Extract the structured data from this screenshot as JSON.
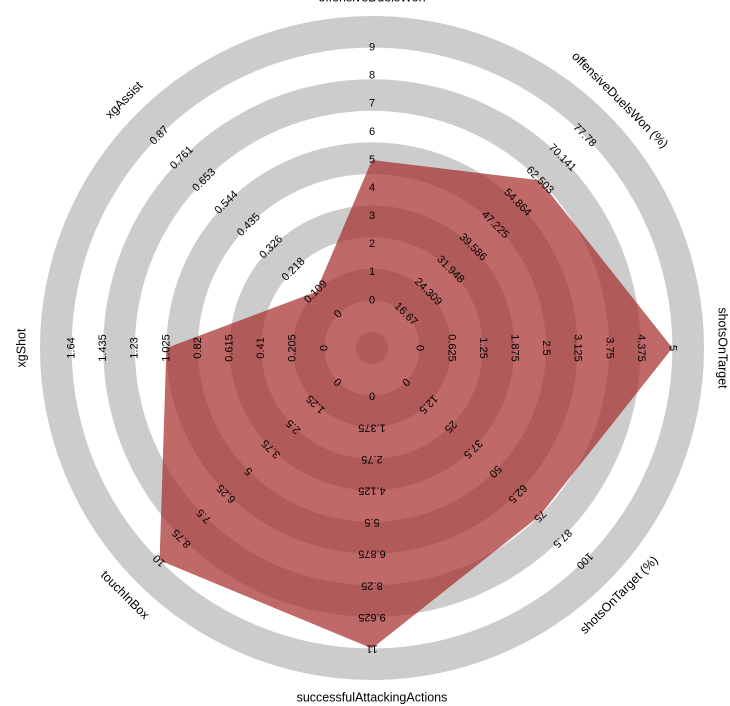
{
  "chart_data": {
    "type": "radar",
    "title": "",
    "colors": {
      "band": "#cccccc",
      "background": "#ffffff",
      "fill": "#a52a2a",
      "fill_opacity": 0.7
    },
    "grid": true,
    "axes": [
      {
        "name": "offensiveDuelsWon",
        "ticks": [
          "0",
          "1",
          "2",
          "3",
          "4",
          "5",
          "6",
          "7",
          "8",
          "9"
        ],
        "min": 0,
        "max": 9,
        "value": 5
      },
      {
        "name": "offensiveDuelsWon (%)",
        "ticks": [
          "16.67",
          "24.309",
          "31.948",
          "39.586",
          "47.225",
          "54.864",
          "62.503",
          "70.141",
          "77.78"
        ],
        "min": 16.67,
        "max": 77.78,
        "value": 62.503
      },
      {
        "name": "shotsOnTarget",
        "ticks": [
          "0",
          "0.625",
          "1.25",
          "1.875",
          "2.5",
          "3.125",
          "3.75",
          "4.375",
          "5"
        ],
        "min": 0,
        "max": 5,
        "value": 5
      },
      {
        "name": "shotsOnTarget (%)",
        "ticks": [
          "0",
          "12.5",
          "25",
          "37.5",
          "50",
          "62.5",
          "75",
          "87.5",
          "100"
        ],
        "min": 0,
        "max": 100,
        "value": 75
      },
      {
        "name": "successfulAttackingActions",
        "ticks": [
          "0",
          "1.375",
          "2.75",
          "4.125",
          "5.5",
          "6.875",
          "8.25",
          "9.625",
          "11"
        ],
        "min": 0,
        "max": 11,
        "value": 11
      },
      {
        "name": "touchInBox",
        "ticks": [
          "0",
          "1.25",
          "2.5",
          "3.75",
          "5",
          "6.25",
          "7.5",
          "8.75",
          "10"
        ],
        "min": 0,
        "max": 10,
        "value": 10
      },
      {
        "name": "xgShot",
        "ticks": [
          "0",
          "0.205",
          "0.41",
          "0.615",
          "0.82",
          "1.025",
          "1.23",
          "1.435",
          "1.64"
        ],
        "min": 0,
        "max": 1.64,
        "value": 1.025
      },
      {
        "name": "xgAssist",
        "ticks": [
          "0",
          "0.109",
          "0.218",
          "0.326",
          "0.435",
          "0.544",
          "0.653",
          "0.761",
          "0.87"
        ],
        "min": 0,
        "max": 0.87,
        "value": 0.109
      }
    ]
  }
}
